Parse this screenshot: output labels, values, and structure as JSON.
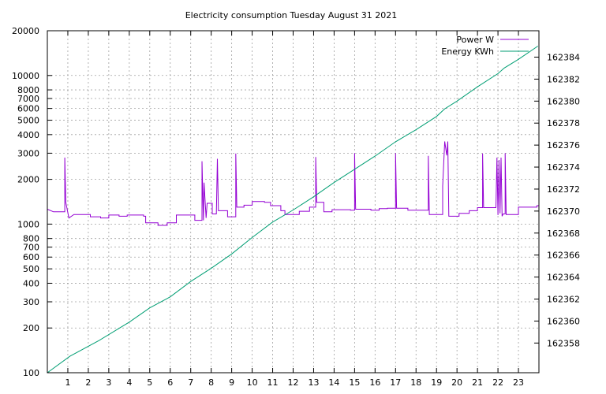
{
  "chart_data": {
    "type": "line",
    "title": "Electricity consumption Tuesday August 31 2021",
    "x_ticks": [
      "1",
      "2",
      "3",
      "4",
      "5",
      "6",
      "7",
      "8",
      "9",
      "10",
      "11",
      "12",
      "13",
      "14",
      "15",
      "16",
      "17",
      "18",
      "19",
      "20",
      "21",
      "22",
      "23"
    ],
    "xlim": [
      0,
      24
    ],
    "y_left": {
      "scale": "log",
      "lim": [
        100,
        20000
      ],
      "ticks": [
        100,
        200,
        300,
        400,
        500,
        600,
        700,
        800,
        1000,
        2000,
        3000,
        4000,
        5000,
        6000,
        7000,
        8000,
        10000,
        20000
      ],
      "tick_labels": [
        "100",
        "200",
        "300",
        "400",
        "500",
        "600",
        "700",
        "800",
        "1000",
        "2000",
        "3000",
        "4000",
        "5000",
        "6000",
        "7000",
        "8000",
        "10000",
        "20000"
      ]
    },
    "y_right": {
      "scale": "linear",
      "lim": [
        162355.3,
        162386.4
      ],
      "ticks": [
        162358,
        162360,
        162362,
        162364,
        162366,
        162368,
        162370,
        162372,
        162374,
        162376,
        162378,
        162380,
        162382,
        162384
      ],
      "tick_labels": [
        "162358",
        "162360",
        "162362",
        "162364",
        "162366",
        "162368",
        "162370",
        "162372",
        "162374",
        "162376",
        "162378",
        "162380",
        "162382",
        "162384"
      ]
    },
    "grid": true,
    "legend_position": "top-right",
    "series": [
      {
        "name": "Power W",
        "axis": "left",
        "color": "#9400d3",
        "step": true,
        "points": [
          [
            0,
            1260
          ],
          [
            0.3,
            1210
          ],
          [
            0.85,
            1210
          ],
          [
            0.85,
            2800
          ],
          [
            0.9,
            1400
          ],
          [
            1.05,
            1100
          ],
          [
            1.3,
            1160
          ],
          [
            2.1,
            1160
          ],
          [
            2.1,
            1120
          ],
          [
            2.6,
            1120
          ],
          [
            2.6,
            1100
          ],
          [
            3.0,
            1100
          ],
          [
            3.0,
            1150
          ],
          [
            3.5,
            1150
          ],
          [
            3.5,
            1130
          ],
          [
            3.9,
            1130
          ],
          [
            3.9,
            1150
          ],
          [
            4.7,
            1150
          ],
          [
            4.7,
            1130
          ],
          [
            4.8,
            1130
          ],
          [
            4.8,
            1020
          ],
          [
            5.4,
            1020
          ],
          [
            5.4,
            980
          ],
          [
            5.85,
            980
          ],
          [
            5.85,
            1020
          ],
          [
            6.3,
            1020
          ],
          [
            6.3,
            1150
          ],
          [
            7.2,
            1150
          ],
          [
            7.2,
            1060
          ],
          [
            7.55,
            1060
          ],
          [
            7.55,
            2650
          ],
          [
            7.62,
            1060
          ],
          [
            7.65,
            1900
          ],
          [
            7.75,
            1100
          ],
          [
            7.8,
            1380
          ],
          [
            8.05,
            1380
          ],
          [
            8.05,
            1170
          ],
          [
            8.25,
            1170
          ],
          [
            8.3,
            2750
          ],
          [
            8.35,
            1230
          ],
          [
            8.8,
            1230
          ],
          [
            8.8,
            1120
          ],
          [
            9.2,
            1120
          ],
          [
            9.2,
            2980
          ],
          [
            9.25,
            1300
          ],
          [
            9.6,
            1300
          ],
          [
            9.6,
            1340
          ],
          [
            10.0,
            1340
          ],
          [
            10.0,
            1420
          ],
          [
            10.6,
            1420
          ],
          [
            10.6,
            1400
          ],
          [
            10.9,
            1400
          ],
          [
            10.9,
            1330
          ],
          [
            11.4,
            1330
          ],
          [
            11.4,
            1230
          ],
          [
            11.6,
            1230
          ],
          [
            11.6,
            1160
          ],
          [
            12.3,
            1160
          ],
          [
            12.3,
            1220
          ],
          [
            12.8,
            1220
          ],
          [
            12.8,
            1300
          ],
          [
            13.1,
            1300
          ],
          [
            13.1,
            2830
          ],
          [
            13.15,
            1400
          ],
          [
            13.5,
            1400
          ],
          [
            13.5,
            1210
          ],
          [
            13.9,
            1210
          ],
          [
            13.9,
            1250
          ],
          [
            14.8,
            1250
          ],
          [
            14.8,
            1240
          ],
          [
            15.0,
            1240
          ],
          [
            15.0,
            3000
          ],
          [
            15.05,
            1260
          ],
          [
            15.8,
            1260
          ],
          [
            15.8,
            1240
          ],
          [
            16.2,
            1240
          ],
          [
            16.2,
            1270
          ],
          [
            16.6,
            1270
          ],
          [
            16.6,
            1280
          ],
          [
            17.0,
            1280
          ],
          [
            17.0,
            3000
          ],
          [
            17.05,
            1280
          ],
          [
            17.6,
            1280
          ],
          [
            17.6,
            1240
          ],
          [
            18.6,
            1240
          ],
          [
            18.6,
            2880
          ],
          [
            18.65,
            1160
          ],
          [
            19.3,
            1160
          ],
          [
            19.3,
            1800
          ],
          [
            19.4,
            3600
          ],
          [
            19.5,
            2900
          ],
          [
            19.55,
            3600
          ],
          [
            19.6,
            1130
          ],
          [
            20.1,
            1130
          ],
          [
            20.1,
            1180
          ],
          [
            20.6,
            1180
          ],
          [
            20.6,
            1230
          ],
          [
            21.0,
            1230
          ],
          [
            21.0,
            1290
          ],
          [
            21.25,
            1290
          ],
          [
            21.25,
            2980
          ],
          [
            21.3,
            1290
          ],
          [
            21.9,
            1290
          ],
          [
            21.95,
            2800
          ],
          [
            22.0,
            1150
          ],
          [
            22.05,
            2700
          ],
          [
            22.1,
            1180
          ],
          [
            22.15,
            2800
          ],
          [
            22.2,
            1130
          ],
          [
            22.25,
            1170
          ],
          [
            22.35,
            1170
          ],
          [
            22.35,
            3000
          ],
          [
            22.4,
            1160
          ],
          [
            23.0,
            1160
          ],
          [
            23.0,
            1300
          ],
          [
            23.9,
            1300
          ],
          [
            23.9,
            1330
          ],
          [
            24,
            1330
          ]
        ]
      },
      {
        "name": "Energy KWh",
        "axis": "right",
        "color": "#009e73",
        "step": false,
        "points": [
          [
            0,
            162355.3
          ],
          [
            1.1,
            162356.8
          ],
          [
            2.5,
            162358.2
          ],
          [
            4.0,
            162359.9
          ],
          [
            5.0,
            162361.2
          ],
          [
            6.0,
            162362.2
          ],
          [
            7.0,
            162363.6
          ],
          [
            8.0,
            162364.8
          ],
          [
            9.0,
            162366.1
          ],
          [
            10.0,
            162367.6
          ],
          [
            11.0,
            162369.0
          ],
          [
            12.0,
            162370.1
          ],
          [
            13.0,
            162371.3
          ],
          [
            14.0,
            162372.6
          ],
          [
            15.0,
            162373.8
          ],
          [
            16.0,
            162375.0
          ],
          [
            17.0,
            162376.3
          ],
          [
            18.0,
            162377.4
          ],
          [
            19.0,
            162378.6
          ],
          [
            19.4,
            162379.3
          ],
          [
            20.0,
            162380.0
          ],
          [
            21.0,
            162381.3
          ],
          [
            22.0,
            162382.5
          ],
          [
            22.3,
            162383.0
          ],
          [
            23.0,
            162383.8
          ],
          [
            23.95,
            162385.0
          ]
        ]
      }
    ]
  }
}
